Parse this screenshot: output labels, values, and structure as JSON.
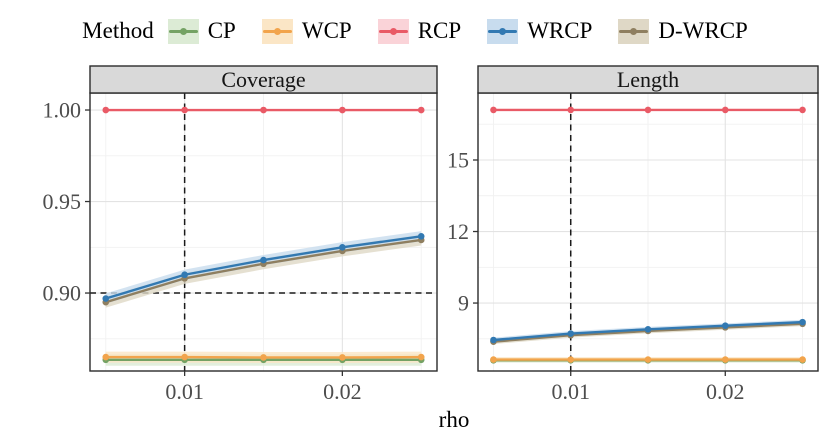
{
  "legend": {
    "title": "Method"
  },
  "methods": [
    {
      "name": "CP",
      "color": "#74A264",
      "ribbon": "#DCEBD5"
    },
    {
      "name": "WCP",
      "color": "#F2A44C",
      "ribbon": "#FBE6C6"
    },
    {
      "name": "RCP",
      "color": "#E95A66",
      "ribbon": "#FAD3D8"
    },
    {
      "name": "WRCP",
      "color": "#3279B2",
      "ribbon": "#C8DCEE"
    },
    {
      "name": "D-WRCP",
      "color": "#8F7F60",
      "ribbon": "#DFD8C6"
    }
  ],
  "axis": {
    "x_title": "rho"
  },
  "chart_data": {
    "type": "line",
    "x": [
      0.005,
      0.01,
      0.015,
      0.02,
      0.025
    ],
    "xlim": [
      0.004,
      0.026
    ],
    "x_ticks": [
      {
        "value": 0.01,
        "label": "0.01"
      },
      {
        "value": 0.02,
        "label": "0.02"
      }
    ],
    "x_minor": [
      0.005,
      0.015,
      0.025
    ],
    "legend_position": "top",
    "grid": true,
    "facets": [
      {
        "title": "Coverage",
        "ylim": [
          0.8574,
          1.0093
        ],
        "y_ticks": [
          {
            "value": 0.9,
            "label": "0.90"
          },
          {
            "value": 0.95,
            "label": "0.95"
          },
          {
            "value": 1.0,
            "label": "1.00"
          }
        ],
        "y_minor": [
          0.875,
          0.925,
          0.975
        ],
        "ref_lines": {
          "h": [
            0.9
          ],
          "v": [
            0.01
          ]
        },
        "series": [
          {
            "name": "CP",
            "values": [
              0.8635,
              0.8635,
              0.8635,
              0.8635,
              0.8635
            ],
            "band": 0.0032
          },
          {
            "name": "WCP",
            "values": [
              0.865,
              0.865,
              0.8648,
              0.8648,
              0.865
            ],
            "band": 0.003
          },
          {
            "name": "RCP",
            "values": [
              1.0,
              1.0,
              1.0,
              1.0,
              1.0
            ],
            "band": 0
          },
          {
            "name": "D-WRCP",
            "values": [
              0.895,
              0.908,
              0.916,
              0.923,
              0.929
            ],
            "band": 0.003
          },
          {
            "name": "WRCP",
            "values": [
              0.897,
              0.91,
              0.918,
              0.925,
              0.931
            ],
            "band": 0.0028
          }
        ]
      },
      {
        "title": "Length",
        "ylim": [
          6.15,
          17.81
        ],
        "y_ticks": [
          {
            "value": 9,
            "label": "9"
          },
          {
            "value": 12,
            "label": "12"
          },
          {
            "value": 15,
            "label": "15"
          }
        ],
        "y_minor": [
          7.5,
          10.5,
          13.5,
          16.5
        ],
        "ref_lines": {
          "h": [],
          "v": [
            0.01
          ]
        },
        "series": [
          {
            "name": "CP",
            "values": [
              6.6,
              6.6,
              6.6,
              6.6,
              6.6
            ],
            "band": 0.1
          },
          {
            "name": "WCP",
            "values": [
              6.63,
              6.63,
              6.63,
              6.63,
              6.63
            ],
            "band": 0.1
          },
          {
            "name": "RCP",
            "values": [
              17.1,
              17.1,
              17.1,
              17.1,
              17.1
            ],
            "band": 0
          },
          {
            "name": "D-WRCP",
            "values": [
              7.38,
              7.65,
              7.83,
              7.98,
              8.13
            ],
            "band": 0.1
          },
          {
            "name": "WRCP",
            "values": [
              7.45,
              7.72,
              7.9,
              8.05,
              8.2
            ],
            "band": 0.1
          }
        ]
      }
    ]
  },
  "style": {
    "grid_major": "#E3E3E3",
    "grid_minor": "#F1F1F1",
    "panel_border": "#2b2b2b",
    "strip_fill": "#D9D9D9",
    "ref_line": "#1a1a1a",
    "tick_text": "#4d4d4d"
  }
}
